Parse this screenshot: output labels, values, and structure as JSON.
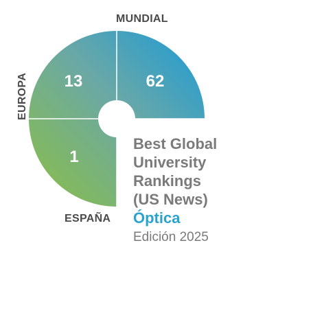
{
  "regions": {
    "world": {
      "label": "MUNDIAL",
      "rank": "62"
    },
    "europe": {
      "label": "EUROPA",
      "rank": "13"
    },
    "spain": {
      "label": "ESPAÑA",
      "rank": "1"
    }
  },
  "ranking": {
    "title_lines": [
      "Best Global",
      "University",
      "Rankings",
      "(US News)"
    ],
    "subject": "Óptica",
    "edition": "Edición 2025"
  },
  "colors": {
    "green": "#8cbf44",
    "blue": "#1a9ad8",
    "label": "#4a4a4a",
    "title": "#7a7a7a",
    "subject": "#2ba3cf"
  }
}
